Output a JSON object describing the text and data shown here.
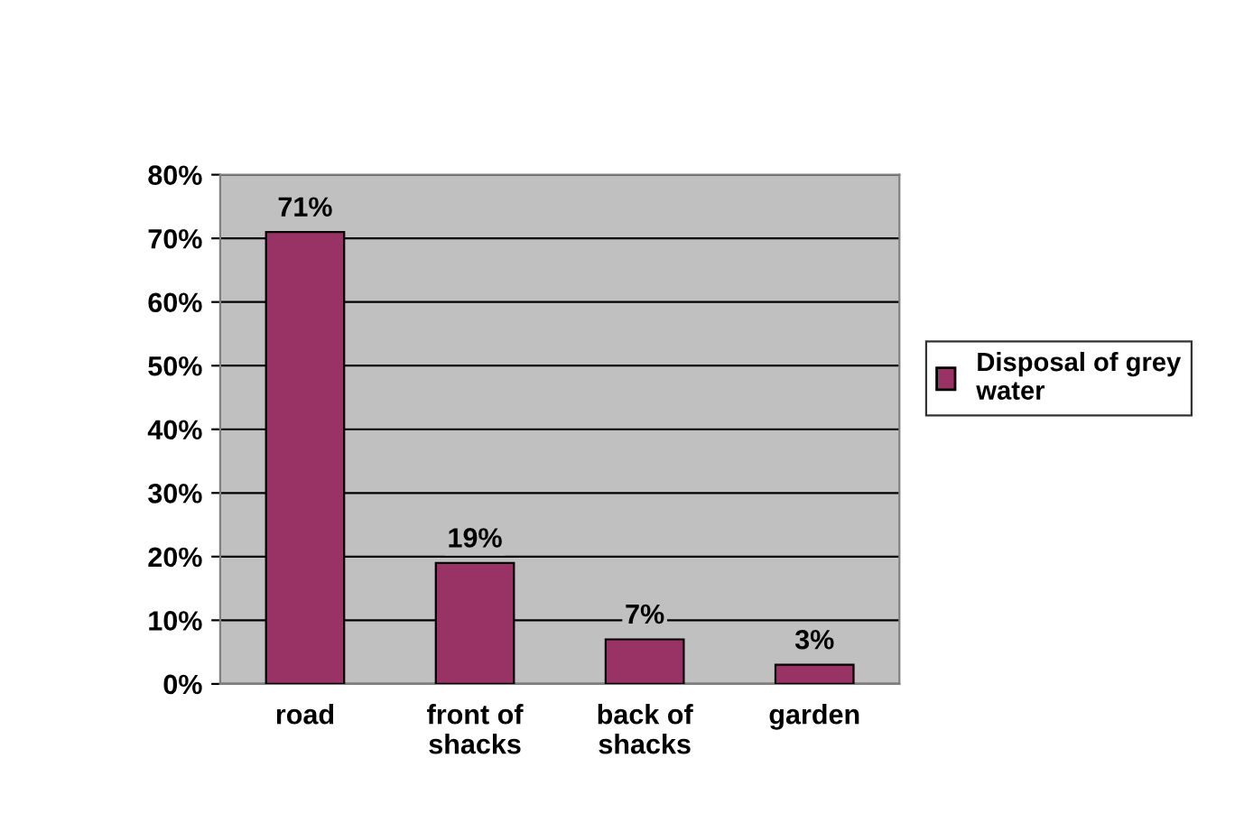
{
  "chart_data": {
    "type": "bar",
    "categories": [
      "road",
      "front of\nshacks",
      "back of\nshacks",
      "garden"
    ],
    "series": [
      {
        "name": "Disposal of grey\nwater",
        "color": "#993366",
        "values": [
          71,
          19,
          7,
          3
        ],
        "value_labels": [
          "71%",
          "19%",
          "7%",
          "3%"
        ]
      }
    ],
    "ylim": [
      0,
      80
    ],
    "yticks": [
      {
        "value": 0,
        "label": "0%"
      },
      {
        "value": 10,
        "label": "10%"
      },
      {
        "value": 20,
        "label": "20%"
      },
      {
        "value": 30,
        "label": "30%"
      },
      {
        "value": 40,
        "label": "40%"
      },
      {
        "value": 50,
        "label": "50%"
      },
      {
        "value": 60,
        "label": "60%"
      },
      {
        "value": 70,
        "label": "70%"
      },
      {
        "value": 80,
        "label": "80%"
      }
    ],
    "grid": "y",
    "legend": "right"
  }
}
